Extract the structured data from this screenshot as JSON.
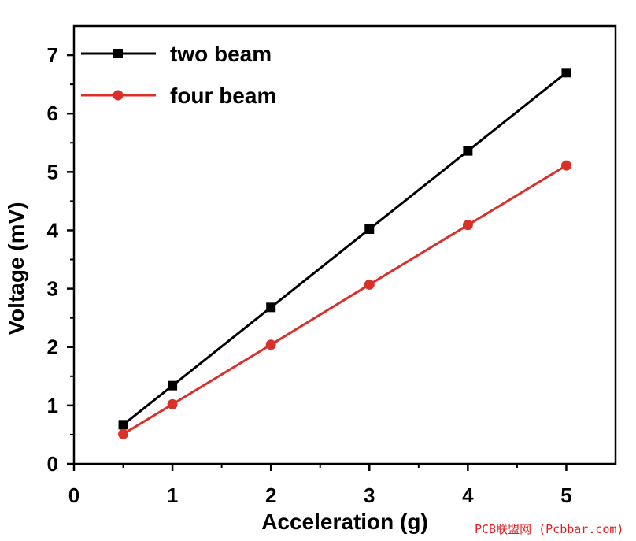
{
  "chart_data": {
    "type": "line",
    "xlabel": "Acceleration (g)",
    "ylabel": "Voltage (mV)",
    "xlim": [
      0,
      5.5
    ],
    "ylim": [
      0,
      7.5
    ],
    "xticks": [
      "0",
      "1",
      "2",
      "3",
      "4",
      "5"
    ],
    "yticks": [
      "0",
      "1",
      "2",
      "3",
      "4",
      "5",
      "6",
      "7"
    ],
    "grid": false,
    "legend_position": "top-left",
    "x": [
      0.5,
      1,
      2,
      3,
      4,
      5
    ],
    "series": [
      {
        "name": "two beam",
        "values": [
          0.67,
          1.34,
          2.68,
          4.02,
          5.36,
          6.7
        ],
        "color": "#000000",
        "marker": "square"
      },
      {
        "name": "four beam",
        "values": [
          0.51,
          1.02,
          2.04,
          3.07,
          4.09,
          5.11
        ],
        "color": "#d9302a",
        "marker": "circle"
      }
    ]
  },
  "watermark": "PCB联盟网 (Pcbbar.com)"
}
